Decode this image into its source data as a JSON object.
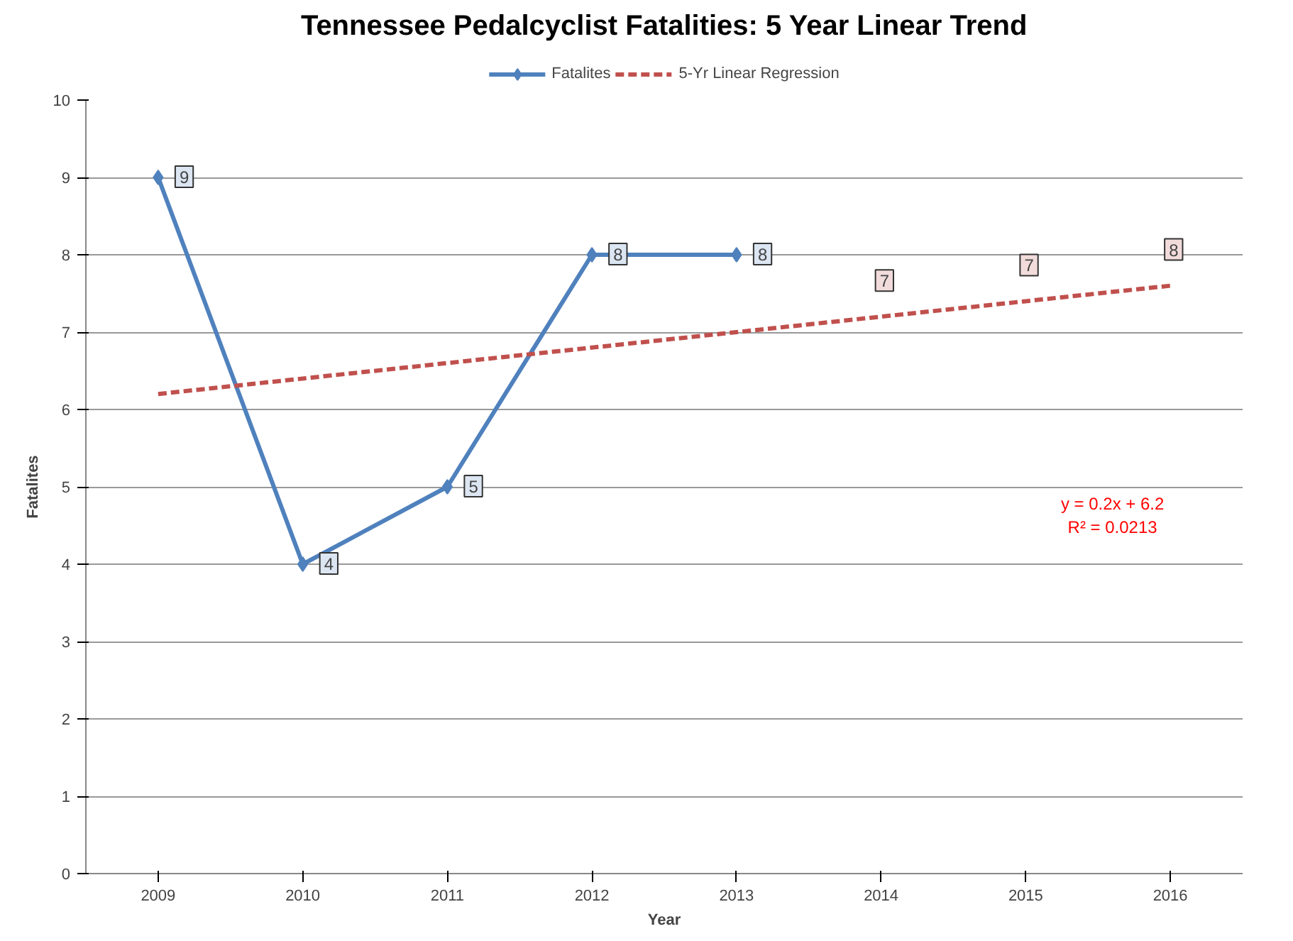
{
  "chart_data": {
    "type": "line",
    "title": "Tennessee Pedalcyclist Fatalities: 5 Year Linear Trend",
    "xlabel": "Year",
    "ylabel": "Fatalites",
    "categories": [
      "2009",
      "2010",
      "2011",
      "2012",
      "2013",
      "2014",
      "2015",
      "2016"
    ],
    "series": [
      {
        "name": "Fatalites",
        "color": "#4f81bd",
        "marker": "diamond",
        "line_style": "solid",
        "values": [
          9,
          4,
          5,
          8,
          8,
          null,
          null,
          null
        ],
        "value_labels": [
          "9",
          "4",
          "5",
          "8",
          "8",
          null,
          null,
          null
        ]
      },
      {
        "name": "5-Yr Linear Regression",
        "color": "#c0504d",
        "marker": "none",
        "line_style": "dashed",
        "values": [
          6.2,
          6.4,
          6.6,
          6.8,
          7.0,
          7.2,
          7.4,
          7.6
        ],
        "value_labels": [
          null,
          null,
          null,
          null,
          null,
          "7",
          "7",
          "8"
        ]
      }
    ],
    "ylim": [
      0,
      10
    ],
    "yticks": [
      0,
      1,
      2,
      3,
      4,
      5,
      6,
      7,
      8,
      9,
      10
    ],
    "grid": "y",
    "legend": "top",
    "annotations": [
      "y = 0.2x + 6.2",
      "R² = 0.0213"
    ]
  }
}
